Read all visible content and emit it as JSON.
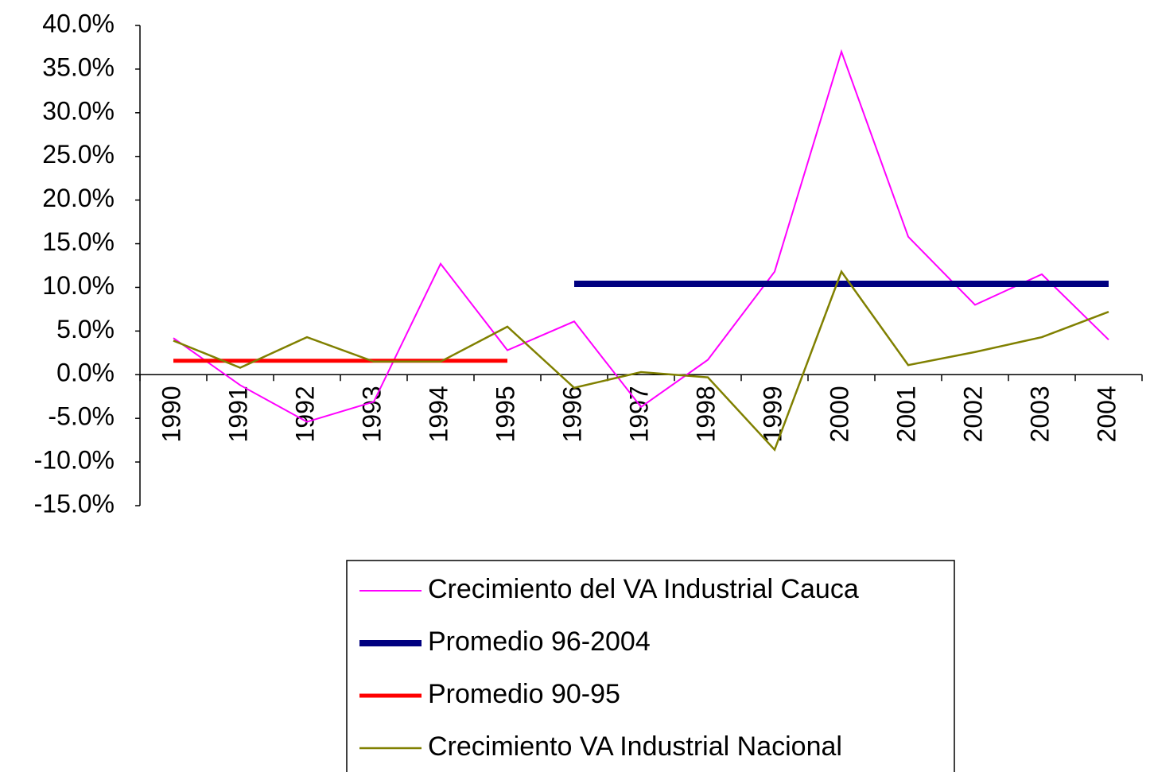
{
  "chart_data": {
    "type": "line",
    "categories": [
      "1990",
      "1991",
      "1992",
      "1993",
      "1994",
      "1995",
      "1996",
      "1997",
      "1998",
      "1999",
      "2000",
      "2001",
      "2002",
      "2003",
      "2004"
    ],
    "series": [
      {
        "name": "Crecimiento del VA Industrial Cauca",
        "color": "#ff00ff",
        "width": 2,
        "values": [
          4.2,
          -1.2,
          -5.4,
          -3.1,
          12.7,
          2.8,
          6.1,
          -3.7,
          1.7,
          11.8,
          37.0,
          15.8,
          8.0,
          11.5,
          4.0
        ]
      },
      {
        "name": "Promedio 96-2004",
        "color": "#000080",
        "width": 8,
        "values": [
          null,
          null,
          null,
          null,
          null,
          null,
          10.4,
          10.4,
          10.4,
          10.4,
          10.4,
          10.4,
          10.4,
          10.4,
          10.4
        ]
      },
      {
        "name": "Promedio 90-95",
        "color": "#ff0000",
        "width": 5,
        "values": [
          1.6,
          1.6,
          1.6,
          1.6,
          1.6,
          1.6,
          null,
          null,
          null,
          null,
          null,
          null,
          null,
          null,
          null
        ]
      },
      {
        "name": "Crecimiento VA Industrial Nacional",
        "color": "#808000",
        "width": 2.5,
        "values": [
          3.9,
          0.8,
          4.3,
          1.5,
          1.5,
          5.5,
          -1.5,
          0.3,
          -0.3,
          -8.6,
          11.8,
          1.1,
          2.6,
          4.3,
          7.2
        ]
      }
    ],
    "ylim": [
      -15,
      40
    ],
    "yticks": [
      {
        "value": -15,
        "label": "-15.0%"
      },
      {
        "value": -10,
        "label": "-10.0%"
      },
      {
        "value": -5,
        "label": "-5.0%"
      },
      {
        "value": 0,
        "label": "0.0%"
      },
      {
        "value": 5,
        "label": "5.0%"
      },
      {
        "value": 10,
        "label": "10.0%"
      },
      {
        "value": 15,
        "label": "15.0%"
      },
      {
        "value": 20,
        "label": "20.0%"
      },
      {
        "value": 25,
        "label": "25.0%"
      },
      {
        "value": 30,
        "label": "30.0%"
      },
      {
        "value": 35,
        "label": "35.0%"
      },
      {
        "value": 40,
        "label": "40.0%"
      }
    ],
    "grid": false,
    "legend": "bottom"
  }
}
